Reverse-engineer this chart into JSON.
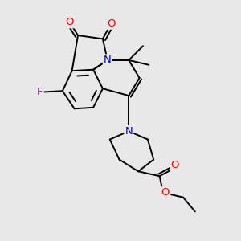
{
  "bg_color": "#e8e8e8",
  "bond_color": "#000000",
  "bond_width": 1.4,
  "atom_colors": {
    "O": "#ff0000",
    "N": "#0000cc",
    "F": "#cc00cc",
    "C": "#000000"
  },
  "font_size": 8.5,
  "fig_size": [
    3.0,
    3.0
  ],
  "dpi": 100
}
